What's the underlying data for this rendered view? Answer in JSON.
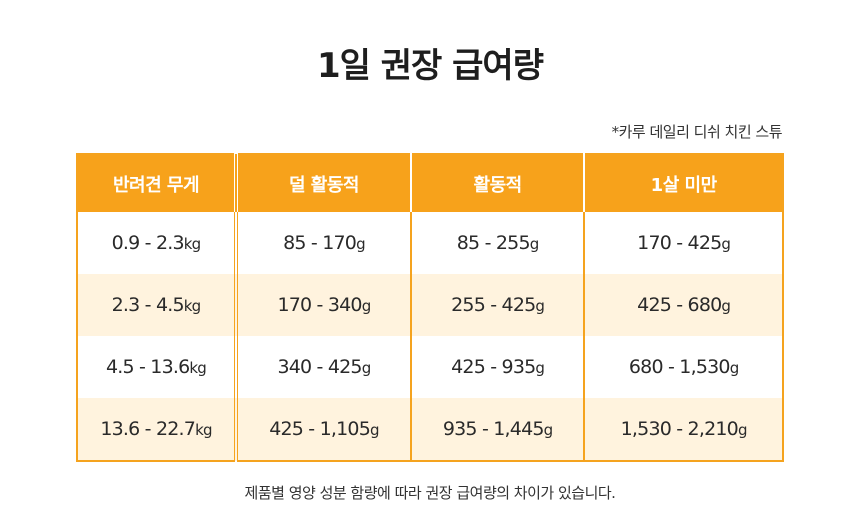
{
  "title": "1일 권장 급여량",
  "product_note": "*카루 데일리 디쉬 치킨 스튜",
  "table": {
    "headers": [
      "반려견 무게",
      "덜 활동적",
      "활동적",
      "1살 미만"
    ],
    "rows": [
      [
        {
          "v": "0.9 - 2.3",
          "u": "kg"
        },
        {
          "v": "85 - 170",
          "u": "g"
        },
        {
          "v": "85 - 255",
          "u": "g"
        },
        {
          "v": "170 - 425",
          "u": "g"
        }
      ],
      [
        {
          "v": "2.3 - 4.5",
          "u": "kg"
        },
        {
          "v": "170 - 340",
          "u": "g"
        },
        {
          "v": "255 - 425",
          "u": "g"
        },
        {
          "v": "425 - 680",
          "u": "g"
        }
      ],
      [
        {
          "v": "4.5 - 13.6",
          "u": "kg"
        },
        {
          "v": "340 - 425",
          "u": "g"
        },
        {
          "v": "425 - 935",
          "u": "g"
        },
        {
          "v": "680 - 1,530",
          "u": "g"
        }
      ],
      [
        {
          "v": "13.6 - 22.7",
          "u": "kg"
        },
        {
          "v": "425 - 1,105",
          "u": "g"
        },
        {
          "v": "935 - 1,445",
          "u": "g"
        },
        {
          "v": "1,530 - 2,210",
          "u": "g"
        }
      ]
    ]
  },
  "footnote": "제품별 영양 성분 함량에 따라 권장 급여량의 차이가 있습니다.",
  "colors": {
    "accent": "#F7A21B",
    "alt_row": "#FFF3DE"
  }
}
